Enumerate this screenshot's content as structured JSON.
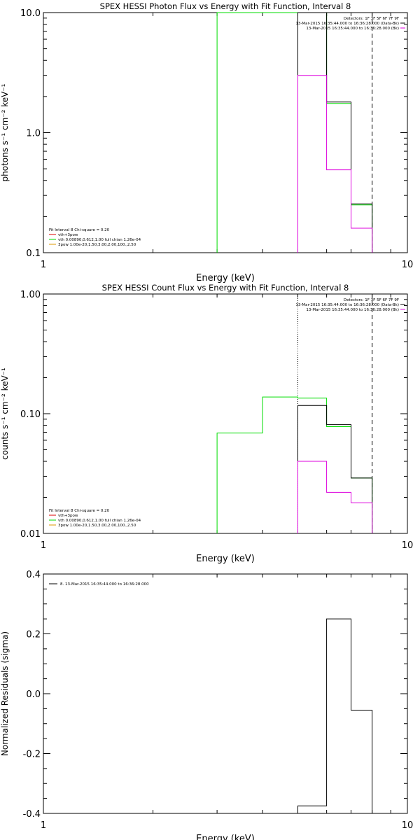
{
  "colors": {
    "black": "#000000",
    "green": "#00dd00",
    "magenta": "#dd00dd",
    "orange": "#dd9900",
    "red": "#dd0000"
  },
  "chart_data": [
    {
      "id": "photon",
      "type": "line",
      "title": "SPEX HESSI Photon Flux vs Energy with Fit Function, Interval 8",
      "xlabel": "Energy (keV)",
      "ylabel": "photons s⁻¹ cm⁻² keV⁻¹",
      "xscale": "log",
      "yscale": "log",
      "xlim": [
        1,
        10
      ],
      "ylim": [
        0.1,
        10
      ],
      "xticks": [
        {
          "v": 1,
          "label": "1"
        },
        {
          "v": 10,
          "label": "10"
        }
      ],
      "yticks": [
        {
          "v": 0.1,
          "label": "0.1"
        },
        {
          "v": 1,
          "label": "1.0"
        },
        {
          "v": 10,
          "label": "10.0"
        }
      ],
      "legend_tr": [
        "Detectors: 1F 3F 5F 6F 7F 9F",
        "13-Mar-2015 16:35:44.000 to 16:36:28.000 (Data-Bk)",
        "13-Mar-2015 16:35:44.000 to 16:36:28.000 (Bk)"
      ],
      "legend_bl": [
        "Fit Interval 8   Chi-square = 0.20",
        "vth+3pow",
        "vth 0.00890,0.612,1.00  full chian 1.26e-04",
        "3pow 1.00e-20,1.50,3.00,2.00,100.,2.50"
      ],
      "vlines": [
        {
          "x": 8,
          "style": "dashed"
        }
      ],
      "series": [
        {
          "color": "green",
          "values": [
            [
              3,
              0.1
            ],
            [
              3,
              12
            ],
            [
              4,
              12
            ],
            [
              5,
              12
            ],
            [
              5,
              10.2
            ],
            [
              6,
              10.2
            ],
            [
              6,
              1.75
            ],
            [
              7,
              1.75
            ],
            [
              7,
              0.25
            ],
            [
              8,
              0.25
            ],
            [
              8,
              0.1
            ]
          ]
        },
        {
          "color": "black",
          "values": [
            [
              5,
              0.1
            ],
            [
              5,
              10.2
            ],
            [
              6,
              10.2
            ],
            [
              6,
              1.8
            ],
            [
              7,
              1.8
            ],
            [
              7,
              0.255
            ],
            [
              8,
              0.255
            ],
            [
              8,
              0.1
            ]
          ]
        },
        {
          "color": "magenta",
          "values": [
            [
              5,
              0.1
            ],
            [
              5,
              3.0
            ],
            [
              6,
              3.0
            ],
            [
              6,
              0.49
            ],
            [
              7,
              0.49
            ],
            [
              7,
              0.16
            ],
            [
              8,
              0.16
            ],
            [
              8,
              0.1
            ]
          ]
        }
      ]
    },
    {
      "id": "count",
      "type": "line",
      "title": "SPEX HESSI Count Flux vs Energy with Fit Function, Interval 8",
      "xlabel": "Energy (keV)",
      "ylabel": "counts s⁻¹ cm⁻² keV⁻¹",
      "xscale": "log",
      "yscale": "log",
      "xlim": [
        1,
        10
      ],
      "ylim": [
        0.01,
        1
      ],
      "xticks": [
        {
          "v": 1,
          "label": "1"
        },
        {
          "v": 10,
          "label": "10"
        }
      ],
      "yticks": [
        {
          "v": 0.01,
          "label": "0.01"
        },
        {
          "v": 0.1,
          "label": "0.10"
        },
        {
          "v": 1,
          "label": "1.00"
        }
      ],
      "legend_tr": [
        "Detectors: 1F 3F 5F 6F 7F 9F",
        "13-Mar-2015 16:35:44.000 to 16:36:28.000 (Data-Bk)",
        "13-Mar-2015 16:35:44.000 to 16:36:28.000 (Bk)"
      ],
      "legend_bl": [
        "Fit Interval 8   Chi-square = 0.20",
        "vth+3pow",
        "vth 0.00890,0.612,1.00  full chian 1.26e-04",
        "3pow 1.00e-20,1.50,3.00,2.00,100.,2.50"
      ],
      "vlines": [
        {
          "x": 5,
          "style": "dotted"
        },
        {
          "x": 8,
          "style": "dashed"
        }
      ],
      "series": [
        {
          "color": "green",
          "values": [
            [
              3,
              0.01
            ],
            [
              3,
              0.069
            ],
            [
              4,
              0.069
            ],
            [
              4,
              0.138
            ],
            [
              5,
              0.138
            ],
            [
              5,
              0.135
            ],
            [
              6,
              0.135
            ],
            [
              6,
              0.078
            ],
            [
              7,
              0.078
            ],
            [
              7,
              0.029
            ],
            [
              8,
              0.029
            ],
            [
              8,
              0.01
            ]
          ]
        },
        {
          "color": "black",
          "values": [
            [
              5,
              0.01
            ],
            [
              5,
              0.117
            ],
            [
              6,
              0.117
            ],
            [
              6,
              0.081
            ],
            [
              7,
              0.081
            ],
            [
              7,
              0.029
            ],
            [
              8,
              0.029
            ],
            [
              8,
              0.01
            ]
          ]
        },
        {
          "color": "magenta",
          "values": [
            [
              5,
              0.01
            ],
            [
              5,
              0.04
            ],
            [
              6,
              0.04
            ],
            [
              6,
              0.022
            ],
            [
              7,
              0.022
            ],
            [
              7,
              0.018
            ],
            [
              8,
              0.018
            ],
            [
              8,
              0.01
            ]
          ]
        }
      ]
    },
    {
      "id": "resid",
      "type": "line",
      "title": "",
      "xlabel": "Energy (keV)",
      "ylabel": "Normalized Residuals (sigma)",
      "xscale": "log",
      "yscale": "linear",
      "xlim": [
        1,
        10
      ],
      "ylim": [
        -0.4,
        0.4
      ],
      "xticks": [
        {
          "v": 1,
          "label": "1"
        },
        {
          "v": 10,
          "label": "10"
        }
      ],
      "yticks": [
        {
          "v": -0.4,
          "label": "-0.4"
        },
        {
          "v": -0.2,
          "label": "-0.2"
        },
        {
          "v": 0,
          "label": "0.0"
        },
        {
          "v": 0.2,
          "label": "0.2"
        },
        {
          "v": 0.4,
          "label": "0.4"
        }
      ],
      "legend_tr": [],
      "legend_line": "8. 13-Mar-2015 16:35:44.000 to 16:36:28.000",
      "legend_bl": [],
      "vlines": [],
      "series": [
        {
          "color": "black",
          "values": [
            [
              5,
              -0.4
            ],
            [
              5,
              -0.375
            ],
            [
              6,
              -0.375
            ],
            [
              6,
              0.25
            ],
            [
              7,
              0.25
            ],
            [
              7,
              -0.055
            ],
            [
              8,
              -0.055
            ],
            [
              8,
              -0.4
            ]
          ]
        }
      ]
    }
  ]
}
